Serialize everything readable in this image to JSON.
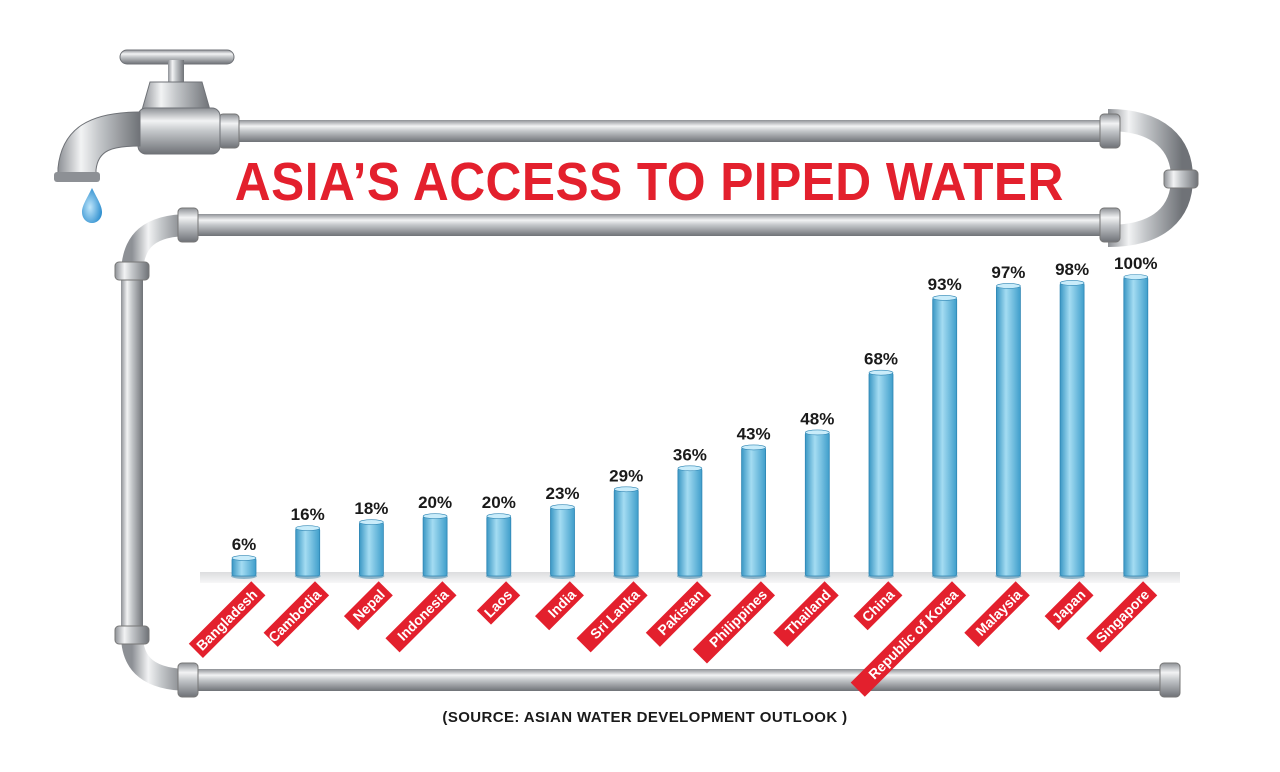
{
  "title": "ASIA’S ACCESS TO PIPED WATER",
  "source": "(SOURCE: ASIAN WATER DEVELOPMENT OUTLOOK )",
  "colors": {
    "title_red": "#e3202d",
    "label_red": "#e3202d",
    "bar_blue": "#5fb6da",
    "pipe_gray": "#a9acb0",
    "water_drop": "#4aa8dc"
  },
  "chart_data": {
    "type": "bar",
    "title": "ASIA’S ACCESS TO PIPED WATER",
    "xlabel": "",
    "ylabel": "",
    "ylim": [
      0,
      100
    ],
    "unit": "%",
    "grid": false,
    "categories": [
      "Bangladesh",
      "Cambodia",
      "Nepal",
      "Indonesia",
      "Laos",
      "India",
      "Sri Lanka",
      "Pakistan",
      "Philippines",
      "Thailand",
      "China",
      "Republic of Korea",
      "Malaysia",
      "Japan",
      "Singapore"
    ],
    "values": [
      6,
      16,
      18,
      20,
      20,
      23,
      29,
      36,
      43,
      48,
      68,
      93,
      97,
      98,
      100
    ],
    "value_labels": [
      "6%",
      "16%",
      "18%",
      "20%",
      "20%",
      "23%",
      "29%",
      "36%",
      "43%",
      "48%",
      "68%",
      "93%",
      "97%",
      "98%",
      "100%"
    ]
  }
}
